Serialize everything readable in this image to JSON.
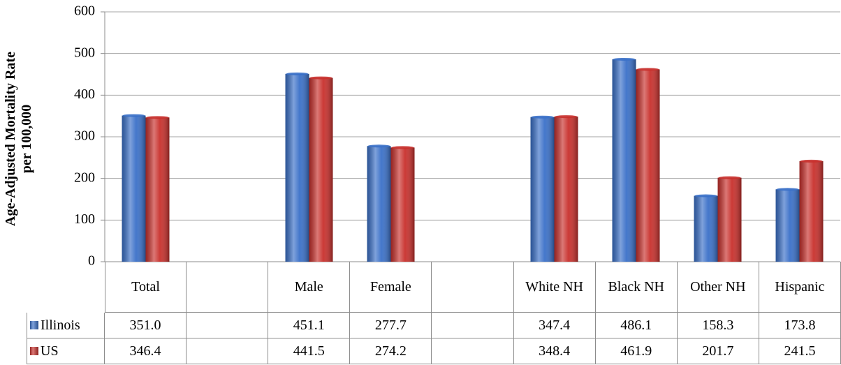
{
  "chart_data": {
    "type": "bar",
    "ylabel": "Age-Adjusted Mortality Rate per 100,000",
    "categories": [
      "Total",
      null,
      "Male",
      "Female",
      null,
      "White NH",
      "Black NH",
      "Other NH",
      "Hispanic"
    ],
    "series": [
      {
        "name": "Illinois",
        "color": "#3a70c8",
        "values": [
          351.0,
          null,
          451.1,
          277.7,
          null,
          347.4,
          486.1,
          158.3,
          173.8
        ],
        "value_labels": [
          "351.0",
          null,
          "451.1",
          "277.7",
          null,
          "347.4",
          "486.1",
          "158.3",
          "173.8"
        ]
      },
      {
        "name": "US",
        "color": "#c8302c",
        "values": [
          346.4,
          null,
          441.5,
          274.2,
          null,
          348.4,
          461.9,
          201.7,
          241.5
        ],
        "value_labels": [
          "346.4",
          null,
          "441.5",
          "274.2",
          null,
          "348.4",
          "461.9",
          "201.7",
          "241.5"
        ]
      }
    ],
    "ylim": [
      0,
      600
    ],
    "yticks": [
      0,
      100,
      200,
      300,
      400,
      500,
      600
    ],
    "grid": true
  }
}
